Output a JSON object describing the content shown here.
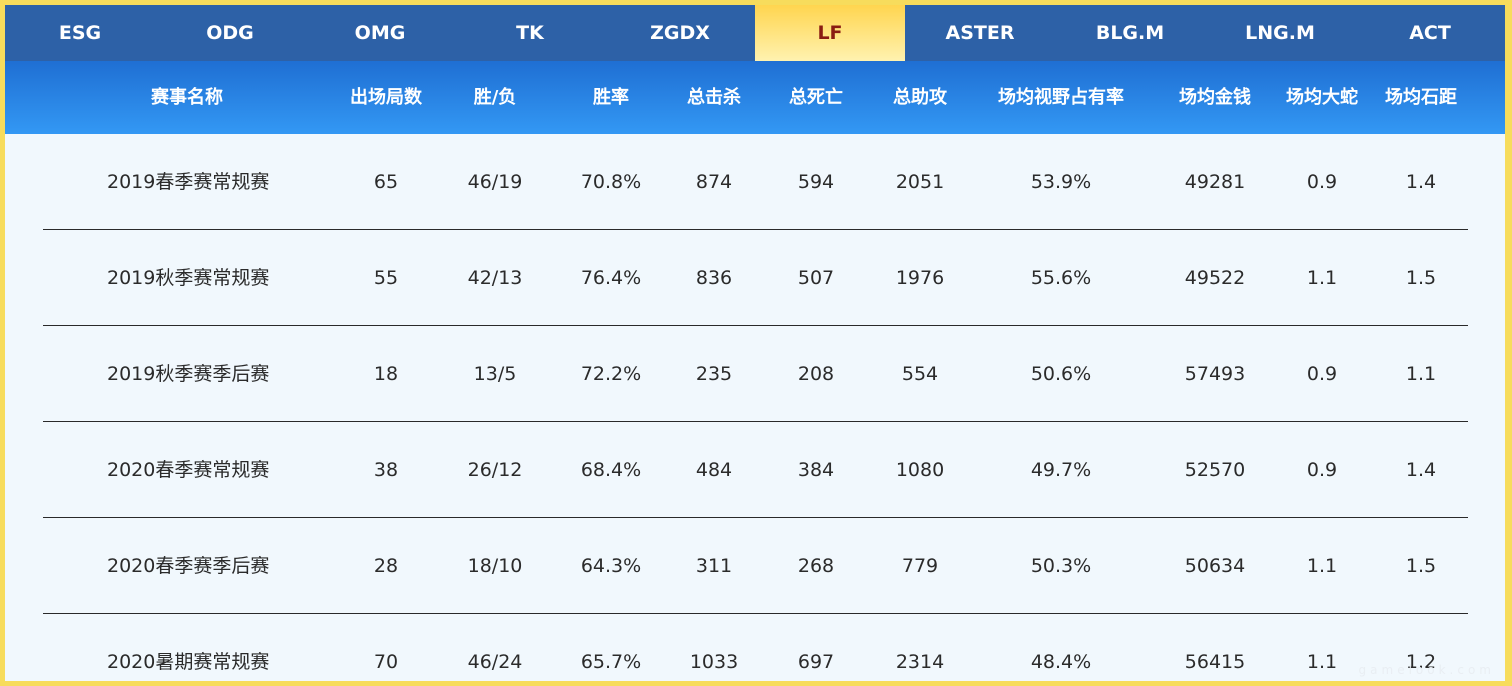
{
  "team_tabs": [
    "ESG",
    "ODG",
    "OMG",
    "TK",
    "ZGDX",
    "LF",
    "ASTER",
    "BLG.M",
    "LNG.M",
    "ACT"
  ],
  "active_team": "LF",
  "columns": [
    "赛事名称",
    "出场局数",
    "胜/负",
    "胜率",
    "总击杀",
    "总死亡",
    "总助攻",
    "场均视野占有率",
    "场均金钱",
    "场均大蛇",
    "场均石距"
  ],
  "rows": [
    [
      "2019春季赛常规赛",
      "65",
      "46/19",
      "70.8%",
      "874",
      "594",
      "2051",
      "53.9%",
      "49281",
      "0.9",
      "1.4"
    ],
    [
      "2019秋季赛常规赛",
      "55",
      "42/13",
      "76.4%",
      "836",
      "507",
      "1976",
      "55.6%",
      "49522",
      "1.1",
      "1.5"
    ],
    [
      "2019秋季赛季后赛",
      "18",
      "13/5",
      "72.2%",
      "235",
      "208",
      "554",
      "50.6%",
      "57493",
      "0.9",
      "1.1"
    ],
    [
      "2020春季赛常规赛",
      "38",
      "26/12",
      "68.4%",
      "484",
      "384",
      "1080",
      "49.7%",
      "52570",
      "0.9",
      "1.4"
    ],
    [
      "2020春季赛季后赛",
      "28",
      "18/10",
      "64.3%",
      "311",
      "268",
      "779",
      "50.3%",
      "50634",
      "1.1",
      "1.5"
    ],
    [
      "2020暑期赛常规赛",
      "70",
      "46/24",
      "65.7%",
      "1033",
      "697",
      "2314",
      "48.4%",
      "56415",
      "1.1",
      "1.2"
    ]
  ],
  "watermark": "gamelook.com",
  "colors": {
    "outer_border": "#f7dc5c",
    "tab_bar": "#2d61a7",
    "active_tab": "#ffd54f",
    "header_gradient_top": "#1f6fd3",
    "header_gradient_bottom": "#3398f4",
    "table_bg": "#f1f8fd"
  }
}
